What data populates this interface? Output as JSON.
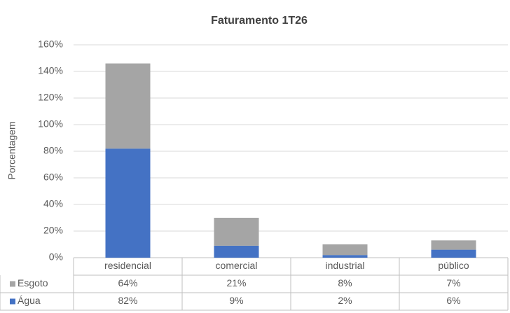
{
  "chart_data": {
    "type": "stacked_bar",
    "title": "Faturamento 1T26",
    "y_label": "Porcentagem",
    "categories": [
      "residencial",
      "comercial",
      "industrial",
      "público"
    ],
    "series": [
      {
        "name": "Água",
        "color": "#4472c4",
        "values": [
          82,
          9,
          2,
          6
        ],
        "value_labels": [
          "82%",
          "9%",
          "2%",
          "6%"
        ]
      },
      {
        "name": "Esgoto",
        "color": "#a5a5a5",
        "values": [
          64,
          21,
          8,
          7
        ],
        "value_labels": [
          "64%",
          "21%",
          "8%",
          "7%"
        ]
      }
    ],
    "ylim": [
      0,
      160
    ],
    "yticks": [
      {
        "value": 0,
        "label": "0%"
      },
      {
        "value": 20,
        "label": "20%"
      },
      {
        "value": 40,
        "label": "40%"
      },
      {
        "value": 60,
        "label": "60%"
      },
      {
        "value": 80,
        "label": "80%"
      },
      {
        "value": 100,
        "label": "100%"
      },
      {
        "value": 120,
        "label": "120%"
      },
      {
        "value": 140,
        "label": "140%"
      },
      {
        "value": 160,
        "label": "160%"
      }
    ],
    "grid": true
  }
}
